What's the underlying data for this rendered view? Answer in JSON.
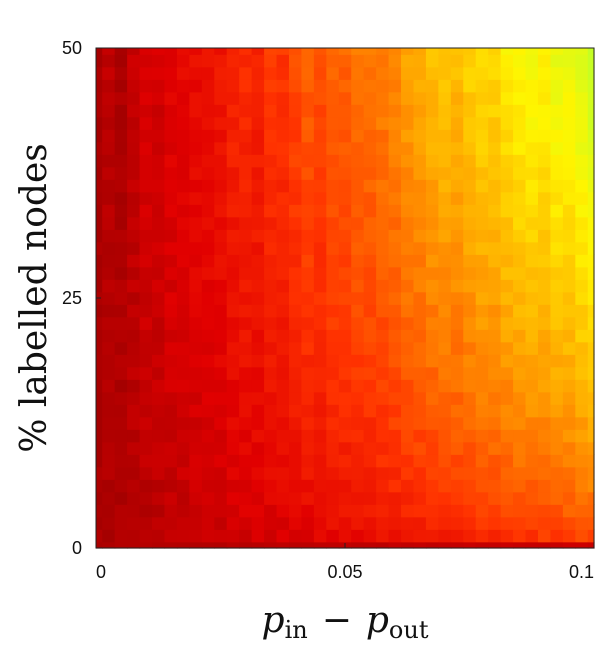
{
  "chart_data": {
    "type": "heatmap",
    "xlabel_main": "p",
    "xlabel_sub1": "in",
    "xlabel_minus": "−",
    "xlabel_sub2": "out",
    "ylabel": "% labelled nodes",
    "xlim": [
      0,
      0.1
    ],
    "ylim": [
      0,
      50
    ],
    "xticks": [
      0,
      0.05,
      0.1
    ],
    "xtick_labels": [
      "0",
      "0.05",
      "0.1"
    ],
    "yticks": [
      0,
      25,
      50
    ],
    "ytick_labels": [
      "0",
      "25",
      "50"
    ],
    "colormap": "jet (upper portion: dark red → red → orange → yellow → green)",
    "color_range": [
      0,
      1
    ],
    "grid": {
      "nx": 41,
      "ny": 41,
      "description": "Value increases with both p_in − p_out and % labelled nodes; lowest (dark red) along left edge and bottom row, highest (green) at top-right.",
      "model": "v = (0.72·(x/0.1)^1.1 + 0.02) · (0.30 + 0.70·(y/50)^0.55) + noise; bottom row (y≈0) ≈ 0.02",
      "corner_values": {
        "x0_y0": 0.02,
        "x0_y50": 0.05,
        "x0.1_y0": 0.08,
        "x0.1_y25": 0.55,
        "x0.1_y50": 0.72
      }
    }
  }
}
